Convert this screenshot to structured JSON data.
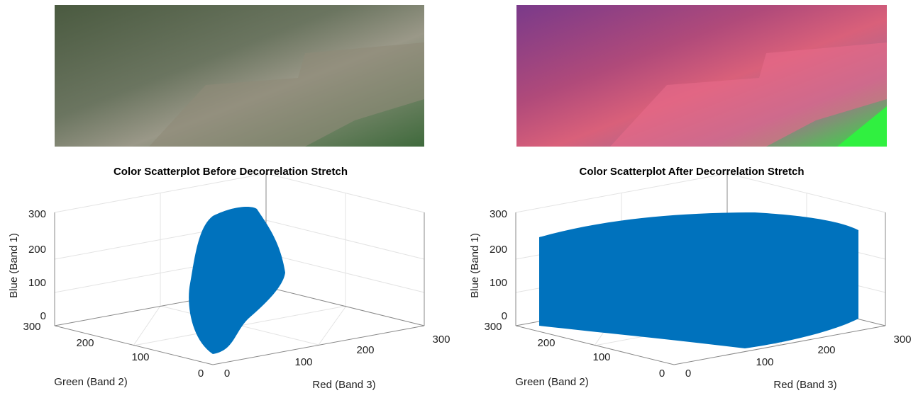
{
  "panels": [
    {
      "title": "Color Scatterplot Before Decorrelation Stretch",
      "axes": {
        "z_label": "Blue (Band 1)",
        "y_label": "Green (Band 2)",
        "x_label": "Red (Band 3)",
        "z_ticks": [
          "0",
          "100",
          "200",
          "300"
        ],
        "y_ticks": [
          "0",
          "100",
          "200",
          "300"
        ],
        "x_ticks": [
          "0",
          "100",
          "200",
          "300"
        ]
      }
    },
    {
      "title": "Color Scatterplot After Decorrelation Stretch",
      "axes": {
        "z_label": "Blue (Band 1)",
        "y_label": "Green (Band 2)",
        "x_label": "Red (Band 3)",
        "z_ticks": [
          "0",
          "100",
          "200",
          "300"
        ],
        "y_ticks": [
          "0",
          "100",
          "200",
          "300"
        ],
        "x_ticks": [
          "0",
          "100",
          "200",
          "300"
        ]
      }
    }
  ]
}
